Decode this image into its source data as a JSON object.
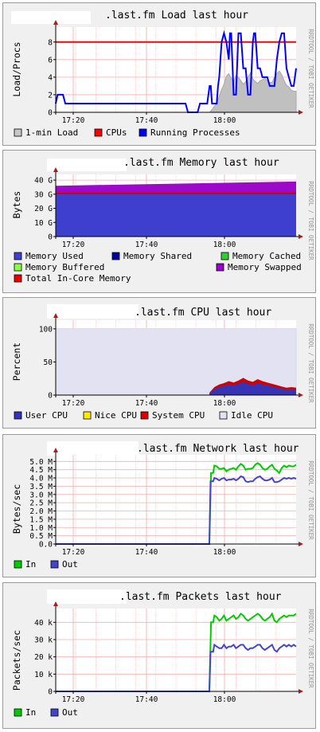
{
  "chart_data": [
    {
      "id": "load",
      "type": "area",
      "title": ".last.fm Load last hour",
      "ylabel": "Load/Procs",
      "side_label": "RRDTOOL / TOBI OETIKER",
      "x_ticks": [
        "17:20",
        "17:40",
        "18:00"
      ],
      "y_ticks": [
        "0",
        "2",
        "4",
        "6",
        "8"
      ],
      "ylim": [
        0,
        9.7
      ],
      "legend": [
        {
          "name": "1-min Load",
          "color": "#c8c8c8"
        },
        {
          "name": "CPUs",
          "color": "#ff0000"
        },
        {
          "name": "Running Processes",
          "color": "#0000ff"
        }
      ],
      "series": [
        {
          "name": "CPUs",
          "kind": "line",
          "color": "#ff0000",
          "x": [
            0,
            100
          ],
          "values": [
            8,
            8
          ]
        },
        {
          "name": "1-min Load",
          "kind": "area",
          "color": "#c0c0c0",
          "edge": "#a8a8a8",
          "x": [
            0,
            64,
            65,
            66,
            67,
            68,
            69,
            70,
            71,
            72,
            73,
            74,
            75,
            76,
            77,
            78,
            79,
            80,
            81,
            82,
            83,
            84,
            85,
            86,
            87,
            88,
            89,
            90,
            91,
            92,
            93,
            94,
            95,
            96,
            97,
            98,
            99,
            100
          ],
          "values": [
            0,
            0,
            0.3,
            0.7,
            1.0,
            1.8,
            2.6,
            3.2,
            4.1,
            4.4,
            3.9,
            3.5,
            4.2,
            4.0,
            3.6,
            3.2,
            3.5,
            4.0,
            4.5,
            3.8,
            3.5,
            3.3,
            3.6,
            3.7,
            3.9,
            3.6,
            3.4,
            3.4,
            4.0,
            4.4,
            4.7,
            4.3,
            3.6,
            3.1,
            2.9,
            2.5,
            2.4,
            2.4
          ]
        },
        {
          "name": "Running Processes",
          "kind": "line",
          "color": "#0000ff",
          "x": [
            0,
            0.8,
            3,
            4,
            5,
            6,
            7,
            54,
            55,
            56,
            57,
            58,
            59,
            60,
            61,
            62,
            63,
            64,
            64.5,
            65,
            66,
            67,
            67.5,
            68,
            69,
            70,
            71,
            72,
            72.5,
            73,
            74,
            75,
            76,
            77,
            78,
            79,
            80,
            81,
            82,
            82.5,
            83,
            84,
            85,
            86,
            87,
            88,
            89,
            90,
            91,
            92,
            93,
            94,
            95,
            96,
            97,
            98,
            99,
            100
          ],
          "values": [
            1,
            2,
            2,
            1,
            1,
            1,
            1,
            1,
            0,
            0,
            0,
            0,
            0,
            1,
            1,
            1,
            1,
            3,
            3,
            1,
            1,
            1,
            3,
            4,
            8,
            9,
            8,
            6,
            9,
            9,
            2,
            2,
            9,
            9,
            5,
            5,
            2,
            2,
            8,
            9,
            9,
            5,
            5,
            4,
            4,
            4,
            3,
            3,
            3,
            6,
            8,
            9,
            9,
            5,
            4,
            3,
            3,
            5
          ]
        }
      ]
    },
    {
      "id": "memory",
      "type": "area",
      "title": ".last.fm Memory last hour",
      "ylabel": "Bytes",
      "side_label": "RRDTOOL / TOBI OETIKER",
      "x_ticks": [
        "17:20",
        "17:40",
        "18:00"
      ],
      "y_ticks": [
        "0",
        "10 G",
        "20 G",
        "30 G",
        "40 G"
      ],
      "ylim": [
        0,
        44
      ],
      "legend": [
        {
          "name": "Memory Used",
          "color": "#3f3fcf"
        },
        {
          "name": "Memory Shared",
          "color": "#0000a0"
        },
        {
          "name": "Memory Cached",
          "color": "#33cc33"
        },
        {
          "name": "Memory Buffered",
          "color": "#88ff44"
        },
        {
          "name": "Memory Swapped",
          "color": "#9900cc"
        },
        {
          "name": "Total In-Core Memory",
          "color": "#ee0000"
        }
      ],
      "series": [
        {
          "name": "Memory Swapped",
          "kind": "area",
          "color": "#9d09c8",
          "x": [
            0,
            100
          ],
          "values": [
            36,
            39
          ]
        },
        {
          "name": "Memory Used",
          "kind": "area",
          "color": "#3f3fcf",
          "x": [
            0,
            100
          ],
          "values": [
            30.5,
            30.5
          ]
        },
        {
          "name": "Total In-Core Memory",
          "kind": "line",
          "color": "#cc0000",
          "x": [
            0,
            100
          ],
          "values": [
            30.6,
            30.6
          ]
        }
      ]
    },
    {
      "id": "cpu",
      "type": "area",
      "title": ".last.fm CPU last hour",
      "ylabel": "Percent",
      "side_label": "RRDTOOL / TOBI OETIKER",
      "x_ticks": [
        "17:20",
        "17:40",
        "18:00"
      ],
      "y_ticks": [
        "0",
        "50",
        "100"
      ],
      "ylim": [
        0,
        113
      ],
      "legend": [
        {
          "name": "User CPU",
          "color": "#3333bb"
        },
        {
          "name": "Nice CPU",
          "color": "#ffea00"
        },
        {
          "name": "System CPU",
          "color": "#dd0000"
        },
        {
          "name": "Idle CPU",
          "color": "#e2e2f2"
        }
      ],
      "series": [
        {
          "name": "Idle CPU",
          "kind": "area",
          "color": "#e2e2f2",
          "edge": "#d8d8e8",
          "x": [
            0,
            100
          ],
          "values": [
            100,
            100
          ]
        },
        {
          "name": "System CPU",
          "kind": "area",
          "color": "#d40000",
          "x": [
            0,
            63.9,
            64,
            66,
            68,
            70,
            72,
            74,
            76,
            78,
            80,
            82,
            84,
            86,
            88,
            90,
            92,
            94,
            96,
            98,
            100
          ],
          "values": [
            0,
            0,
            4,
            12,
            16,
            18,
            21,
            19,
            22,
            26,
            22,
            20,
            24,
            21,
            19,
            17,
            15,
            13,
            11,
            12,
            11
          ]
        },
        {
          "name": "User CPU",
          "kind": "area",
          "color": "#3434b4",
          "x": [
            0,
            63.9,
            64,
            66,
            68,
            70,
            72,
            74,
            76,
            78,
            80,
            82,
            84,
            86,
            88,
            90,
            92,
            94,
            96,
            98,
            100
          ],
          "values": [
            0,
            0,
            3,
            9,
            12,
            14,
            16,
            15,
            17,
            20,
            17,
            15,
            18,
            16,
            15,
            13,
            11,
            10,
            8,
            9,
            8
          ]
        }
      ]
    },
    {
      "id": "network",
      "type": "line",
      "title": ".last.fm Network last hour",
      "ylabel": "Bytes/sec",
      "side_label": "RRDTOOL / TOBI OETIKER",
      "x_ticks": [
        "17:20",
        "17:40",
        "18:00"
      ],
      "y_ticks": [
        "0.0",
        "0.5 M",
        "1.0 M",
        "1.5 M",
        "2.0 M",
        "2.5 M",
        "3.0 M",
        "3.5 M",
        "4.0 M",
        "4.5 M",
        "5.0 M"
      ],
      "ylim": [
        0,
        5.4
      ],
      "legend": [
        {
          "name": "In",
          "color": "#00cc00"
        },
        {
          "name": "Out",
          "color": "#4444cc"
        }
      ],
      "series": [
        {
          "name": "In",
          "kind": "line",
          "color": "#00cc00",
          "x": [
            0,
            63.9,
            64.6,
            65.5,
            66,
            67,
            68,
            69,
            70,
            71,
            72,
            73,
            74,
            75,
            76,
            77,
            78,
            79,
            80,
            81,
            82,
            83,
            84,
            85,
            86,
            87,
            88,
            89,
            90,
            91,
            92,
            93,
            94,
            95,
            96,
            97,
            98,
            99,
            100
          ],
          "values": [
            0,
            0,
            4.3,
            4.3,
            4.75,
            4.7,
            4.55,
            4.55,
            4.6,
            4.4,
            4.5,
            4.55,
            4.6,
            4.5,
            4.7,
            4.85,
            4.75,
            4.5,
            4.55,
            4.55,
            4.6,
            4.8,
            4.9,
            4.8,
            4.6,
            4.5,
            4.55,
            4.7,
            4.8,
            4.55,
            4.45,
            4.3,
            4.6,
            4.75,
            4.65,
            4.75,
            4.7,
            4.7,
            4.8
          ]
        },
        {
          "name": "Out",
          "kind": "line",
          "color": "#4444cc",
          "x": [
            0,
            63.9,
            64.4,
            65.5,
            66,
            67,
            68,
            69,
            70,
            71,
            72,
            73,
            74,
            75,
            76,
            77,
            78,
            79,
            80,
            81,
            82,
            83,
            84,
            85,
            86,
            87,
            88,
            89,
            90,
            91,
            92,
            93,
            94,
            95,
            96,
            97,
            98,
            99,
            100
          ],
          "values": [
            0,
            0,
            3.8,
            3.8,
            4.0,
            3.95,
            3.85,
            3.95,
            4.0,
            3.85,
            3.9,
            3.9,
            3.95,
            3.85,
            3.95,
            4.1,
            4.05,
            3.8,
            3.75,
            3.8,
            3.8,
            3.95,
            4.05,
            4.1,
            3.95,
            3.85,
            3.85,
            3.9,
            4.0,
            3.75,
            3.75,
            3.8,
            3.9,
            4.0,
            3.95,
            4.0,
            3.95,
            4.0,
            3.95
          ]
        }
      ]
    },
    {
      "id": "packets",
      "type": "line",
      "title": ".last.fm Packets last hour",
      "ylabel": "Packets/sec",
      "side_label": "RRDTOOL / TOBI OETIKER",
      "x_ticks": [
        "17:20",
        "17:40",
        "18:00"
      ],
      "y_ticks": [
        "0",
        "10 k",
        "20 k",
        "30 k",
        "40 k"
      ],
      "ylim": [
        0,
        48
      ],
      "legend": [
        {
          "name": "In",
          "color": "#00cc00"
        },
        {
          "name": "Out",
          "color": "#4444cc"
        }
      ],
      "series": [
        {
          "name": "In",
          "kind": "line",
          "color": "#00cc00",
          "x": [
            0,
            63.9,
            64.6,
            65.5,
            66,
            67,
            68,
            69,
            70,
            71,
            72,
            73,
            74,
            75,
            76,
            77,
            78,
            79,
            80,
            81,
            82,
            83,
            84,
            85,
            86,
            87,
            88,
            89,
            90,
            91,
            92,
            93,
            94,
            95,
            96,
            97,
            98,
            99,
            100
          ],
          "values": [
            0,
            0,
            40,
            40,
            44,
            43,
            41,
            42,
            44,
            41,
            42,
            43,
            44,
            42,
            43,
            45,
            44,
            42,
            41,
            42,
            43,
            44,
            45,
            44,
            42,
            41,
            42,
            43,
            45,
            41,
            40,
            42,
            43,
            44,
            43,
            44,
            44,
            44,
            45
          ]
        },
        {
          "name": "Out",
          "kind": "line",
          "color": "#4444cc",
          "x": [
            0,
            63.9,
            64.4,
            65.5,
            66,
            67,
            68,
            69,
            70,
            71,
            72,
            73,
            74,
            75,
            76,
            77,
            78,
            79,
            80,
            81,
            82,
            83,
            84,
            85,
            86,
            87,
            88,
            89,
            90,
            91,
            92,
            93,
            94,
            95,
            96,
            97,
            98,
            99,
            100
          ],
          "values": [
            0,
            0,
            23,
            23,
            27,
            26,
            25,
            25,
            27,
            25,
            26,
            26,
            27,
            25,
            26,
            27,
            27,
            25,
            24,
            25,
            25,
            26,
            27,
            27,
            25,
            24,
            25,
            26,
            27,
            24,
            23,
            25,
            26,
            27,
            26,
            27,
            26,
            27,
            26
          ]
        }
      ]
    }
  ]
}
